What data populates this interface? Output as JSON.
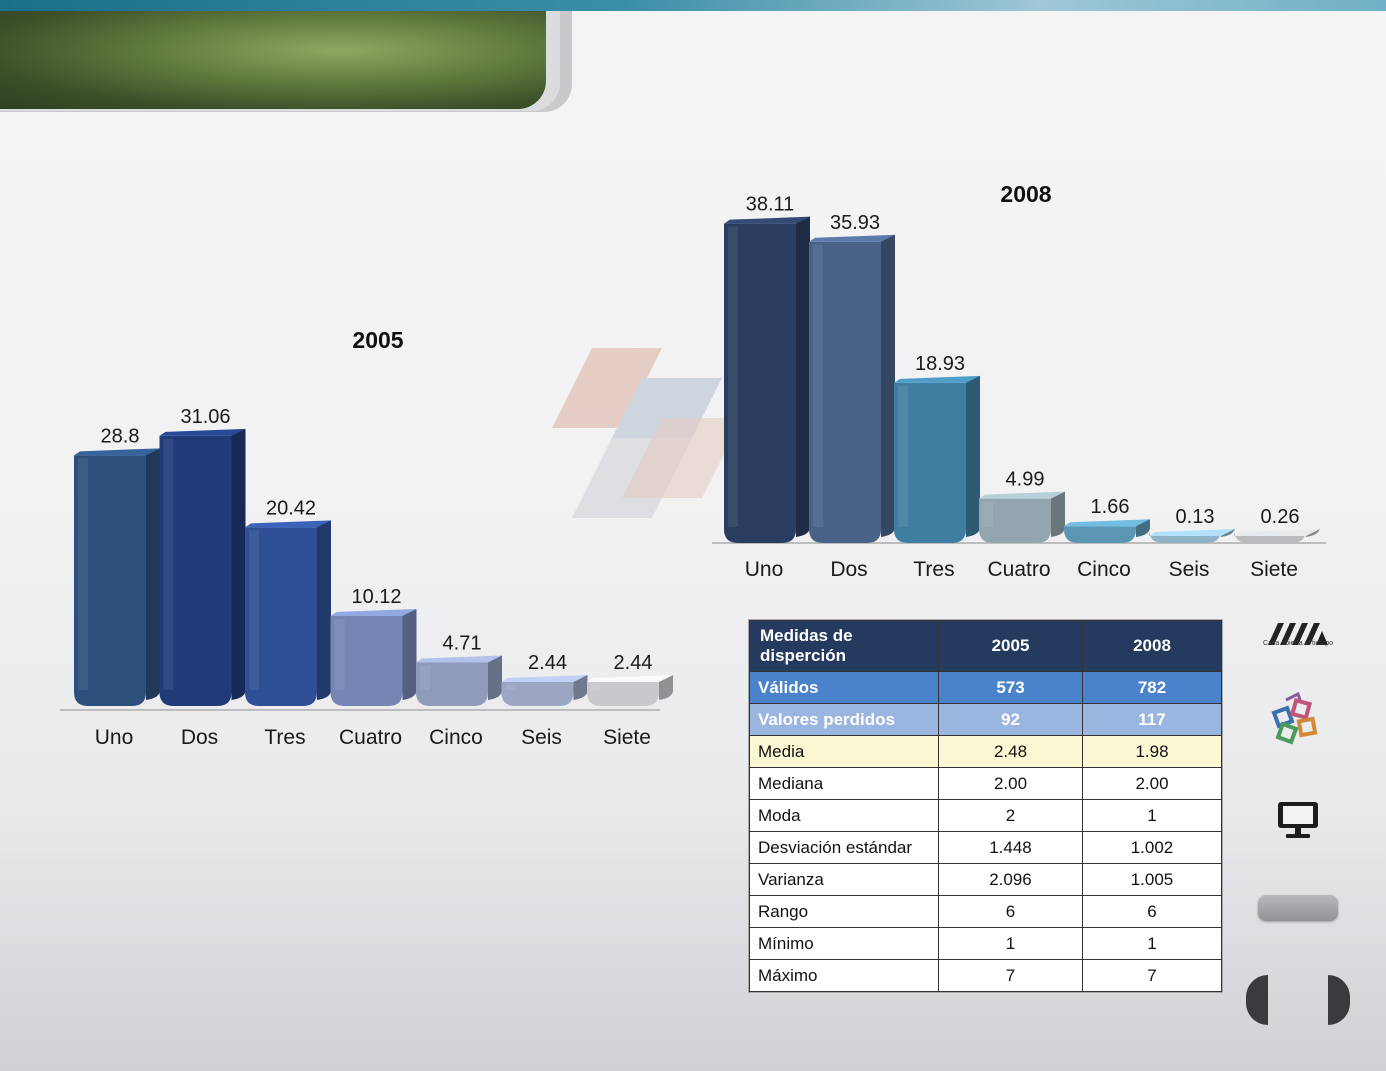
{
  "chart_data": [
    {
      "type": "bar",
      "title": "2005",
      "categories": [
        "Uno",
        "Dos",
        "Tres",
        "Cuatro",
        "Cinco",
        "Seis",
        "Siete"
      ],
      "values": [
        28.8,
        31.06,
        20.42,
        10.12,
        4.71,
        2.44,
        2.44
      ],
      "value_labels": [
        "28.8",
        "31.06",
        "20.42",
        "10.12",
        "4.71",
        "2.44",
        "2.44"
      ],
      "colors": [
        "#2c4f7c",
        "#203b78",
        "#2e4f94",
        "#7586b4",
        "#8e9bbb",
        "#9aa6c2",
        "#c7c9cc"
      ],
      "ylim": [
        0,
        40
      ],
      "grid": false
    },
    {
      "type": "bar",
      "title": "2008",
      "categories": [
        "Uno",
        "Dos",
        "Tres",
        "Cuatro",
        "Cinco",
        "Seis",
        "Siete"
      ],
      "values": [
        38.11,
        35.93,
        18.93,
        4.99,
        1.66,
        0.13,
        0.26
      ],
      "value_labels": [
        "38.11",
        "35.93",
        "18.93",
        "4.99",
        "1.66",
        "0.13",
        "0.26"
      ],
      "colors": [
        "#293d5e",
        "#4a6288",
        "#3f7ea0",
        "#93a6ad",
        "#5b97b4",
        "#8fb4c7",
        "#b9bcbe"
      ],
      "ylim": [
        0,
        40
      ],
      "grid": false
    }
  ],
  "table": {
    "headers": [
      "Medidas de disperción",
      "2005",
      "2008"
    ],
    "rows": [
      {
        "label": "Válidos",
        "v2005": "573",
        "v2008": "782"
      },
      {
        "label": "Valores perdidos",
        "v2005": "92",
        "v2008": "117"
      },
      {
        "label": "Media",
        "v2005": "2.48",
        "v2008": "1.98"
      },
      {
        "label": "Mediana",
        "v2005": "2.00",
        "v2008": "2.00"
      },
      {
        "label": "Moda",
        "v2005": "2",
        "v2008": "1"
      },
      {
        "label": "Desviación estándar",
        "v2005": "1.448",
        "v2008": "1.002"
      },
      {
        "label": "Varianza",
        "v2005": "2.096",
        "v2008": "1.005"
      },
      {
        "label": "Rango",
        "v2005": "6",
        "v2008": "6"
      },
      {
        "label": "Mínimo",
        "v2005": "1",
        "v2008": "1"
      },
      {
        "label": "Máximo",
        "v2005": "7",
        "v2008": "7"
      }
    ]
  },
  "sidebar": {
    "logo_text": "Casa abierta al tiempo",
    "icons": [
      "uam-logo-icon",
      "books-icon",
      "monitor-icon",
      "menu-button",
      "previous-icon",
      "next-icon"
    ]
  }
}
